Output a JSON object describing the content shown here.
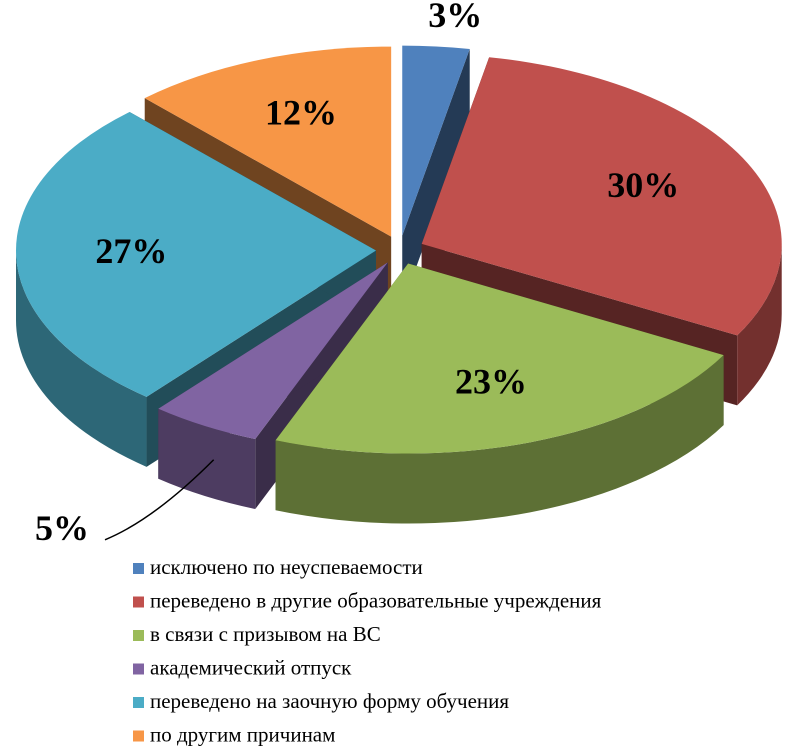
{
  "chart_data": {
    "type": "pie3d",
    "categories": [
      "исключено по неуспеваемости",
      "переведено в другие образовательные учреждения",
      "в связи с призывом на ВС",
      "академический отпуск",
      "переведено на заочную форму обучения",
      "по другим причинам"
    ],
    "values": [
      3,
      30,
      23,
      5,
      27,
      12
    ],
    "value_labels": [
      "3%",
      "30%",
      "23%",
      "5%",
      "27%",
      "12%"
    ],
    "colors": [
      "#4f81bd",
      "#c0504d",
      "#9bbb59",
      "#8064a2",
      "#4bacc6",
      "#f79646"
    ],
    "legend": "bottom"
  }
}
